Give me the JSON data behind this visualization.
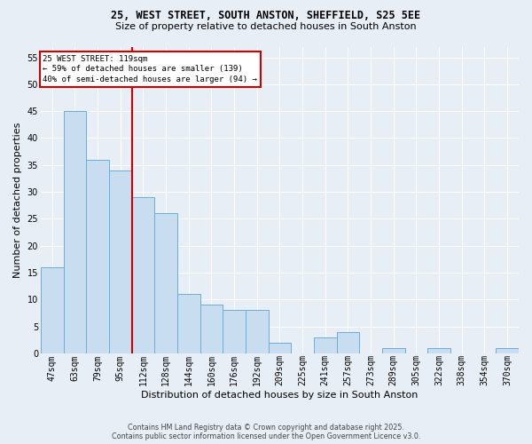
{
  "title1": "25, WEST STREET, SOUTH ANSTON, SHEFFIELD, S25 5EE",
  "title2": "Size of property relative to detached houses in South Anston",
  "xlabel": "Distribution of detached houses by size in South Anston",
  "ylabel": "Number of detached properties",
  "categories": [
    "47sqm",
    "63sqm",
    "79sqm",
    "95sqm",
    "112sqm",
    "128sqm",
    "144sqm",
    "160sqm",
    "176sqm",
    "192sqm",
    "209sqm",
    "225sqm",
    "241sqm",
    "257sqm",
    "273sqm",
    "289sqm",
    "305sqm",
    "322sqm",
    "338sqm",
    "354sqm",
    "370sqm"
  ],
  "values": [
    16,
    45,
    36,
    34,
    29,
    26,
    11,
    9,
    8,
    8,
    2,
    0,
    3,
    4,
    0,
    1,
    0,
    1,
    0,
    0,
    1
  ],
  "bar_color": "#c8ddf0",
  "bar_edge_color": "#6aaed6",
  "bar_linewidth": 0.7,
  "annotation_line1": "25 WEST STREET: 119sqm",
  "annotation_line2": "← 59% of detached houses are smaller (139)",
  "annotation_line3": "40% of semi-detached houses are larger (94) →",
  "ylim": [
    0,
    57
  ],
  "yticks": [
    0,
    5,
    10,
    15,
    20,
    25,
    30,
    35,
    40,
    45,
    50,
    55
  ],
  "red_line_index": 3.5,
  "background_color": "#e8eef6",
  "grid_color": "#ffffff",
  "footer": "Contains HM Land Registry data © Crown copyright and database right 2025.\nContains public sector information licensed under the Open Government Licence v3.0.",
  "red_line_color": "#cc0000",
  "ann_box_facecolor": "#ffffff",
  "ann_box_edgecolor": "#cc0000",
  "title1_fontsize": 8.5,
  "title2_fontsize": 8,
  "ylabel_fontsize": 8,
  "xlabel_fontsize": 8,
  "tick_fontsize": 7,
  "footer_fontsize": 5.8
}
